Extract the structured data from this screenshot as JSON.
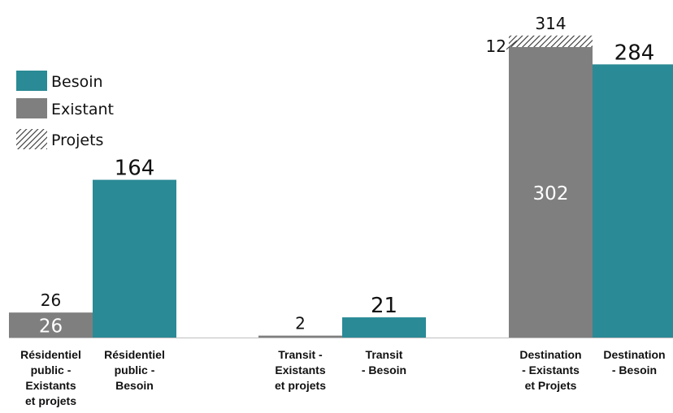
{
  "chart_data": {
    "type": "bar",
    "stacked": true,
    "categories": [
      [
        "Résidentiel",
        "public -",
        "Existants",
        "et projets"
      ],
      [
        "Résidentiel",
        "public -",
        "Besoin"
      ],
      [
        "Transit -",
        "Existants",
        "et projets"
      ],
      [
        "Transit",
        "- Besoin"
      ],
      [
        "Destination",
        "- Existants",
        "et Projets"
      ],
      [
        "Destination",
        "- Besoin"
      ]
    ],
    "series": [
      {
        "name": "Besoin",
        "color": "#2a8a95",
        "values": [
          0,
          164,
          0,
          21,
          0,
          284
        ]
      },
      {
        "name": "Existant",
        "color": "#7f7f7f",
        "values": [
          26,
          0,
          2,
          0,
          302,
          0
        ]
      },
      {
        "name": "Projets",
        "color": "hatch",
        "values": [
          0,
          0,
          0,
          0,
          12,
          0
        ]
      }
    ],
    "totals": [
      "26",
      "164",
      "2",
      "21",
      "314",
      "284"
    ],
    "inner_labels": [
      "26",
      "",
      "",
      "",
      "302",
      ""
    ],
    "side_labels": [
      "",
      "",
      "",
      "",
      "12",
      ""
    ],
    "legend": [
      "Besoin",
      "Existant",
      "Projets"
    ],
    "legend_position": "top-left",
    "ylim": [
      0,
      330
    ],
    "grid": false
  }
}
